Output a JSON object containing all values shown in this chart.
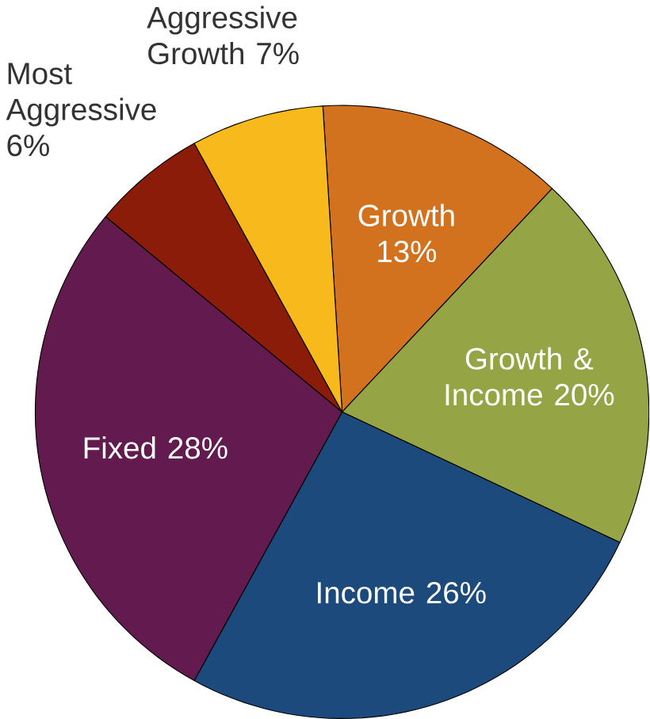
{
  "chart_data": {
    "type": "pie",
    "categories": [
      "Growth",
      "Growth & Income",
      "Income",
      "Fixed",
      "Most Aggressive",
      "Aggressive Growth"
    ],
    "values": [
      13,
      20,
      26,
      28,
      6,
      7
    ],
    "value_labels": [
      "13%",
      "20%",
      "26%",
      "28%",
      "6%",
      "7%"
    ],
    "colors": [
      "#d2721f",
      "#95a545",
      "#1c4a7c",
      "#621a4f",
      "#8b1c0a",
      "#f8b91d"
    ]
  }
}
